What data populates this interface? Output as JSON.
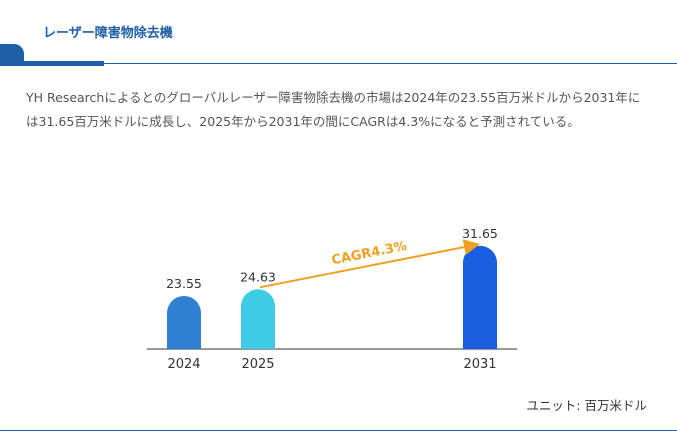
{
  "header": {
    "title": "レーザー障害物除去機"
  },
  "description": "YH Researchによるとのグローバルレーザー障害物除去機の市場は2024年の23.55百万米ドルから2031年には31.65百万米ドルに成長し、2025年から2031年の間にCAGRは4.3%になると予測されている。",
  "unit_label": "ユニット: 百万米ドル",
  "chart_data": {
    "type": "bar",
    "categories": [
      "2024",
      "2025",
      "2031"
    ],
    "values": [
      23.55,
      24.63,
      31.65
    ],
    "value_labels": [
      "23.55",
      "24.63",
      "31.65"
    ],
    "colors": [
      "#2f7fd3",
      "#3ecbe6",
      "#1a5fe0"
    ],
    "annotation": {
      "text": "CAGR4.3%",
      "from": "2025",
      "to": "2031",
      "color": "#f0a020"
    },
    "title": "",
    "xlabel": "",
    "ylabel": "",
    "grid": false,
    "legend": "none"
  }
}
